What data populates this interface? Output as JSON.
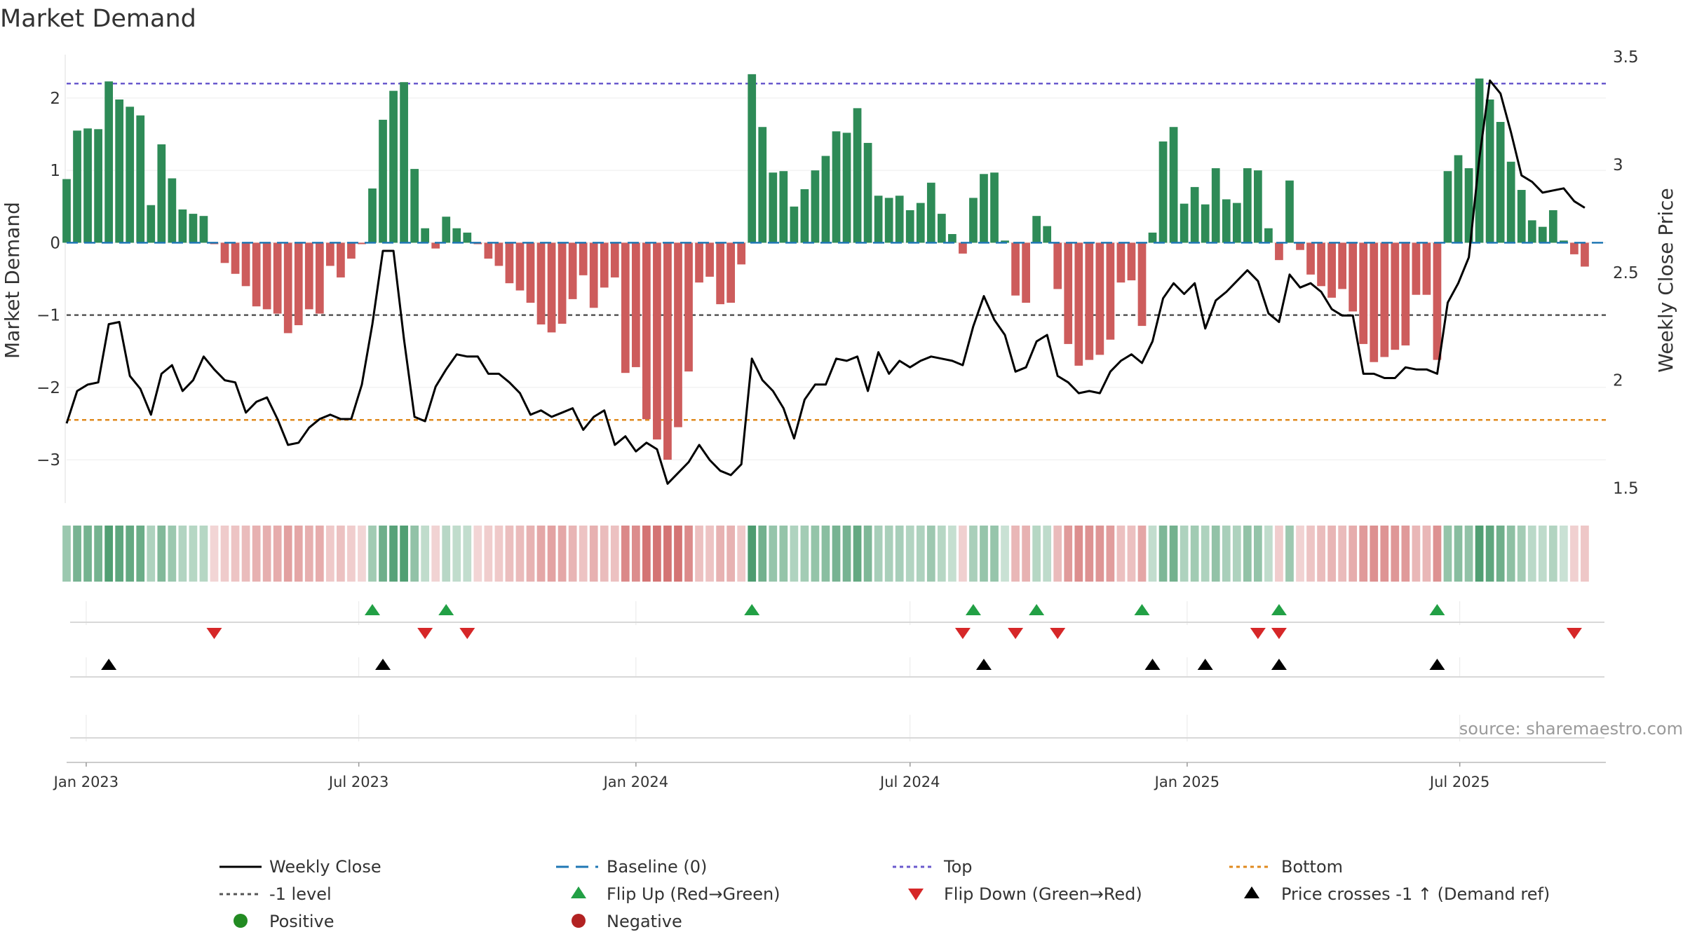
{
  "chart_data": {
    "type": "bar",
    "title": "Market Demand",
    "ylabel": "Market Demand",
    "y2label": "Weekly Close Price",
    "ylim": [
      -3.6,
      2.6
    ],
    "y2lim": [
      1.43,
      3.51
    ],
    "yticks": [
      2,
      1,
      0,
      -1,
      -2,
      -3
    ],
    "yticks_labels": [
      "2",
      "1",
      "0",
      "−1",
      "−2",
      "−3"
    ],
    "y2ticks": [
      3.5,
      3,
      2.5,
      2,
      1.5
    ],
    "y2ticks_labels": [
      "3.5",
      "3",
      "2.5",
      "2",
      "1.5"
    ],
    "x_start_date": "2022-12-19",
    "x_end_date": "2025-10-06",
    "week0_date": "2022-12-19",
    "xticks": [
      {
        "date": "2023-01-01",
        "label": "Jan 2023"
      },
      {
        "date": "2023-07-01",
        "label": "Jul 2023"
      },
      {
        "date": "2024-01-01",
        "label": "Jan 2024"
      },
      {
        "date": "2024-07-01",
        "label": "Jul 2024"
      },
      {
        "date": "2025-01-01",
        "label": "Jan 2025"
      },
      {
        "date": "2025-07-01",
        "label": "Jul 2025"
      }
    ],
    "reference_lines": {
      "top": 2.2,
      "bottom": -2.45,
      "minus_one": -1,
      "baseline": 0
    },
    "demand": [
      0.88,
      1.55,
      1.58,
      1.57,
      2.23,
      1.98,
      1.88,
      1.76,
      0.52,
      1.36,
      0.89,
      0.46,
      0.4,
      0.37,
      -0.02,
      -0.28,
      -0.43,
      -0.6,
      -0.88,
      -0.92,
      -0.98,
      -1.25,
      -1.14,
      -0.92,
      -0.98,
      -0.32,
      -0.48,
      -0.22,
      -0.02,
      0.75,
      1.7,
      2.1,
      2.22,
      1.02,
      0.2,
      -0.08,
      0.36,
      0.2,
      0.14,
      -0.02,
      -0.22,
      -0.32,
      -0.56,
      -0.66,
      -0.83,
      -1.13,
      -1.24,
      -1.12,
      -0.78,
      -0.45,
      -0.9,
      -0.62,
      -0.48,
      -1.8,
      -1.72,
      -2.44,
      -2.72,
      -3.0,
      -2.55,
      -1.78,
      -0.55,
      -0.47,
      -0.85,
      -0.83,
      -0.3,
      2.33,
      1.6,
      0.97,
      0.99,
      0.5,
      0.74,
      1.0,
      1.2,
      1.54,
      1.52,
      1.86,
      1.38,
      0.65,
      0.62,
      0.65,
      0.45,
      0.55,
      0.83,
      0.4,
      0.12,
      -0.15,
      0.62,
      0.95,
      0.97,
      0.03,
      -0.73,
      -0.83,
      0.37,
      0.23,
      -0.64,
      -1.4,
      -1.7,
      -1.62,
      -1.55,
      -1.34,
      -0.55,
      -0.52,
      -1.15,
      0.14,
      1.4,
      1.6,
      0.54,
      0.77,
      0.53,
      1.03,
      0.6,
      0.55,
      1.03,
      1.0,
      0.2,
      -0.24,
      0.86,
      -0.1,
      -0.44,
      -0.6,
      -0.76,
      -0.64,
      -0.95,
      -1.4,
      -1.65,
      -1.58,
      -1.48,
      -1.42,
      -0.72,
      -0.72,
      -1.62,
      0.99,
      1.21,
      1.03,
      2.27,
      1.98,
      1.67,
      1.12,
      0.73,
      0.31,
      0.22,
      0.45,
      0.03,
      -0.16,
      -0.33
    ],
    "close": [
      1.8,
      1.95,
      1.98,
      1.99,
      2.26,
      2.27,
      2.02,
      1.96,
      1.84,
      2.03,
      2.07,
      1.95,
      2.0,
      2.11,
      2.05,
      2.0,
      1.99,
      1.85,
      1.9,
      1.92,
      1.82,
      1.7,
      1.71,
      1.78,
      1.82,
      1.84,
      1.82,
      1.82,
      1.98,
      2.26,
      2.6,
      2.6,
      2.19,
      1.83,
      1.81,
      1.97,
      2.05,
      2.12,
      2.11,
      2.11,
      2.03,
      2.03,
      1.99,
      1.94,
      1.84,
      1.86,
      1.83,
      1.85,
      1.87,
      1.77,
      1.83,
      1.86,
      1.7,
      1.74,
      1.67,
      1.71,
      1.68,
      1.52,
      1.57,
      1.62,
      1.7,
      1.63,
      1.58,
      1.56,
      1.61,
      2.1,
      2.0,
      1.95,
      1.87,
      1.73,
      1.91,
      1.98,
      1.98,
      2.1,
      2.09,
      2.11,
      1.95,
      2.13,
      2.03,
      2.09,
      2.06,
      2.09,
      2.11,
      2.1,
      2.09,
      2.07,
      2.25,
      2.39,
      2.28,
      2.21,
      2.04,
      2.06,
      2.18,
      2.21,
      2.02,
      1.99,
      1.94,
      1.95,
      1.94,
      2.04,
      2.09,
      2.12,
      2.08,
      2.18,
      2.38,
      2.45,
      2.4,
      2.45,
      2.24,
      2.37,
      2.41,
      2.46,
      2.51,
      2.46,
      2.31,
      2.27,
      2.49,
      2.43,
      2.45,
      2.41,
      2.33,
      2.3,
      2.3,
      2.03,
      2.03,
      2.01,
      2.01,
      2.06,
      2.05,
      2.05,
      2.03,
      2.36,
      2.45,
      2.57,
      3.03,
      3.39,
      3.33,
      3.15,
      2.95,
      2.92,
      2.87,
      2.88,
      2.89,
      2.83,
      2.8
    ],
    "flip_up_weeks": [
      29,
      36,
      65,
      86,
      92,
      102,
      115,
      130
    ],
    "flip_down_weeks": [
      14,
      34,
      38,
      85,
      90,
      94,
      113,
      115,
      143
    ],
    "price_cross_weeks": [
      4,
      30,
      87,
      103,
      108,
      115,
      130
    ],
    "legend": [
      "Weekly Close",
      "Baseline (0)",
      "Top",
      "Bottom",
      "-1 level",
      "Flip Up (Red→Green)",
      "Flip Down (Green→Red)",
      "Price crosses -1 ↑ (Demand ref)",
      "Positive",
      "Negative"
    ],
    "legend_placement": "bottom",
    "source": "source: sharemaestro.com"
  },
  "colors": {
    "positive_bar": "#2e8b57",
    "negative_bar": "#cd5c5c",
    "positive_strip": "#2e8b57",
    "negative_strip": "#cd5c5c",
    "close_line": "#000000",
    "baseline": "#1f77b4",
    "top_line": "#6a5acd",
    "bottom_line": "#e08a1e",
    "minus_one_line": "#555555",
    "flip_up": "#22a045",
    "flip_down": "#d62728",
    "price_cross": "#000000",
    "positive_dot": "#228b22",
    "negative_dot": "#b22222"
  }
}
